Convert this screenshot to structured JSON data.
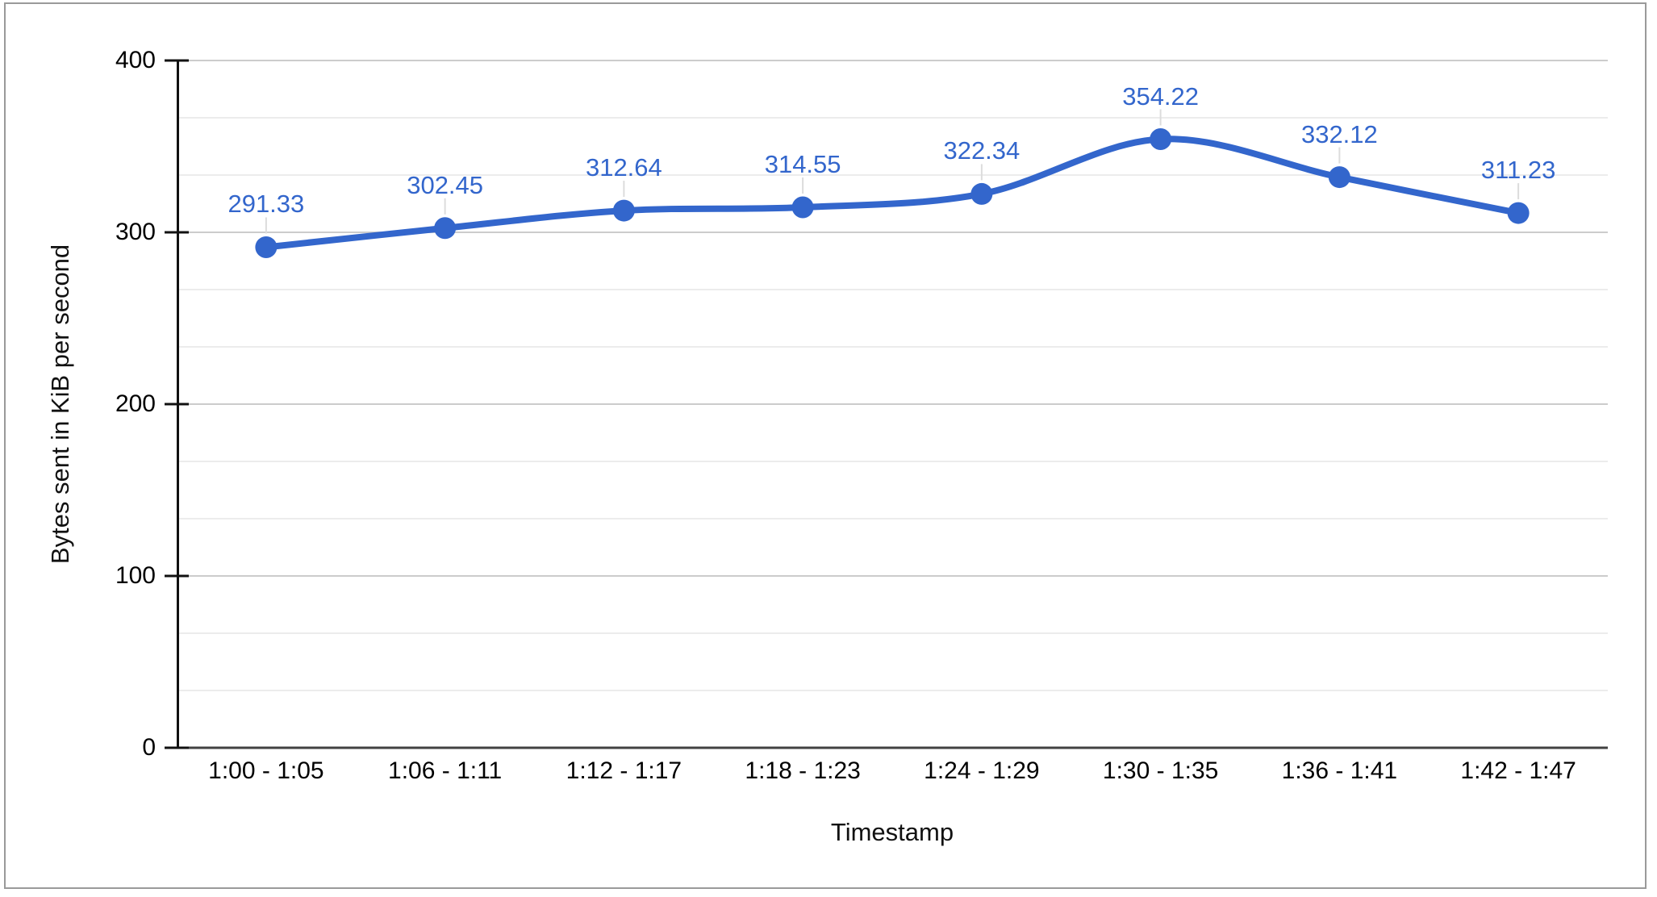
{
  "chart_data": {
    "type": "line",
    "curve": "smooth",
    "title": "",
    "xlabel": "Timestamp",
    "ylabel": "Bytes sent in KiB per second",
    "categories": [
      "1:00 - 1:05",
      "1:06 - 1:11",
      "1:12 - 1:17",
      "1:18 - 1:23",
      "1:24 - 1:29",
      "1:30 - 1:35",
      "1:36 - 1:41",
      "1:42 - 1:47"
    ],
    "values": [
      291.33,
      302.45,
      312.64,
      314.55,
      322.34,
      354.22,
      332.12,
      311.23
    ],
    "point_labels": [
      "291.33",
      "302.45",
      "312.64",
      "314.55",
      "322.34",
      "354.22",
      "332.12",
      "311.23"
    ],
    "ylim": [
      0,
      400
    ],
    "yticks": [
      0,
      100,
      200,
      300,
      400
    ],
    "minor_gridlines_per_major": 2,
    "grid": true,
    "legend_position": "none",
    "annotations_shown": true
  },
  "colors": {
    "series": "#3366cc",
    "annotation_text": "#3366cc",
    "annotation_stem": "#dcdcdc",
    "major_gridline": "#cccccc",
    "minor_gridline": "#ececec",
    "baseline": "#424242",
    "axis_line": "#111111",
    "tick_text": "#000000",
    "frame_border": "#9a9a9a",
    "background": "#ffffff"
  }
}
